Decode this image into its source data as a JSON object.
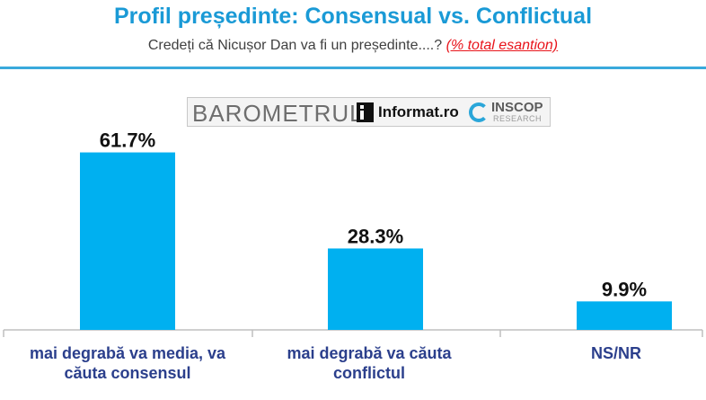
{
  "header": {
    "title": "Profil președinte: Consensual vs. Conflictual",
    "subtitle_question": "Credeți că Nicușor Dan va fi un președinte....?",
    "subtitle_note": "(% total esantion)"
  },
  "logo": {
    "barometer": "BAROMETRUL",
    "publisher": "Informat.ro",
    "institute": "INSCOP",
    "institute_sub": "RESEARCH"
  },
  "colors": {
    "bar": "#00b0f0",
    "title": "#1a9ad6",
    "category_text": "#2b3f8c",
    "axis": "#bfbfbf"
  },
  "chart_data": {
    "type": "bar",
    "title": "Profil președinte: Consensual vs. Conflictual",
    "categories": [
      "mai degrabă va media, va căuta consensul",
      "mai degrabă va căuta conflictul",
      "NS/NR"
    ],
    "values": [
      61.7,
      28.3,
      9.9
    ],
    "value_labels": [
      "61.7%",
      "28.3%",
      "9.9%"
    ],
    "ylim": [
      0,
      100
    ],
    "grid": false,
    "legend": "none"
  }
}
